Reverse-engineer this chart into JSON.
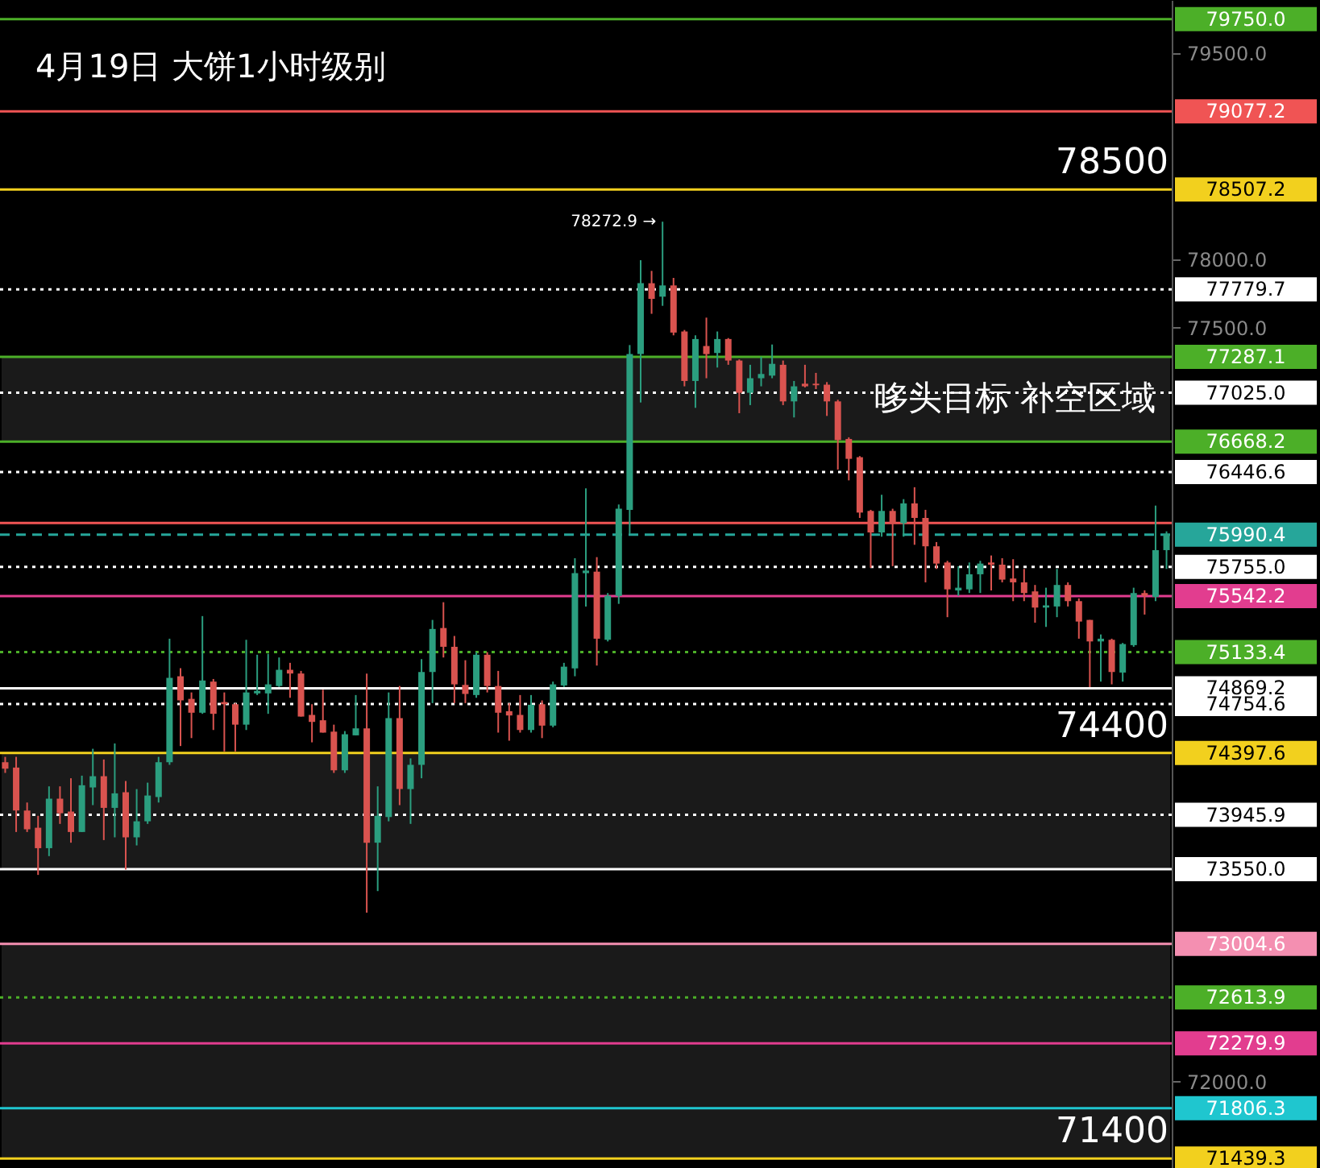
{
  "chart_data": {
    "type": "candlestick",
    "title": "4月19日 大饼1小时级别",
    "categories": [
      null,
      null,
      null,
      null,
      null,
      null,
      null,
      null,
      null,
      null,
      null,
      null,
      null,
      null,
      null,
      null,
      null,
      null,
      null,
      null,
      null,
      null,
      null,
      null,
      null,
      null,
      null,
      null,
      null,
      null,
      null,
      null,
      null,
      null,
      null,
      null,
      null,
      null,
      null,
      null,
      null,
      null,
      null,
      null,
      null,
      null,
      null,
      null,
      null,
      null,
      null,
      null,
      null,
      null,
      null,
      null,
      null,
      null,
      null,
      null,
      null,
      null,
      null,
      null,
      null,
      null,
      null,
      null,
      null,
      null,
      null,
      null,
      null,
      null,
      null,
      null,
      null,
      null,
      null,
      null,
      null,
      null,
      null,
      null,
      null,
      null,
      null,
      null,
      null,
      null,
      null,
      null,
      null,
      null,
      null,
      null,
      null,
      null,
      null,
      null,
      null,
      null,
      null,
      null,
      null,
      null,
      null
    ],
    "ohlc": [
      [
        74330,
        74369,
        74252,
        74283
      ],
      [
        74291,
        74369,
        73821,
        73978
      ],
      [
        73978,
        74036,
        73821,
        73841
      ],
      [
        73852,
        73939,
        73508,
        73703
      ],
      [
        73703,
        74154,
        73645,
        74064
      ],
      [
        74064,
        74154,
        73880,
        73958
      ],
      [
        73970,
        74213,
        73743,
        73821
      ],
      [
        73821,
        74232,
        73821,
        74162
      ],
      [
        74146,
        74428,
        74017,
        74228
      ],
      [
        74228,
        74350,
        73762,
        73997
      ],
      [
        73997,
        74467,
        73782,
        74103
      ],
      [
        74111,
        74193,
        73547,
        73782
      ],
      [
        73782,
        74134,
        73723,
        73899
      ],
      [
        73899,
        74181,
        73880,
        74087
      ],
      [
        74076,
        74369,
        74036,
        74330
      ],
      [
        74330,
        75231,
        74311,
        74945
      ],
      [
        74957,
        75016,
        74448,
        74781
      ],
      [
        74792,
        74839,
        74506,
        74691
      ],
      [
        74691,
        75396,
        74683,
        74926
      ],
      [
        74918,
        74937,
        74565,
        74683
      ],
      [
        74769,
        74839,
        74409,
        74753
      ],
      [
        74753,
        74761,
        74409,
        74604
      ],
      [
        74604,
        75223,
        74565,
        74839
      ],
      [
        74832,
        75114,
        74820,
        74851
      ],
      [
        74832,
        75121,
        74683,
        74898
      ],
      [
        74886,
        75094,
        74879,
        75004
      ],
      [
        75004,
        75055,
        74800,
        74977
      ],
      [
        74977,
        74996,
        74663,
        74663
      ],
      [
        74675,
        74753,
        74475,
        74624
      ],
      [
        74636,
        74859,
        74546,
        74546
      ],
      [
        74553,
        74604,
        74252,
        74271
      ],
      [
        74271,
        74557,
        74252,
        74534
      ],
      [
        74526,
        74820,
        74526,
        74577
      ],
      [
        74577,
        74977,
        73233,
        73743
      ],
      [
        73743,
        74154,
        73390,
        73939
      ],
      [
        73931,
        74839,
        73899,
        74651
      ],
      [
        74651,
        74886,
        74017,
        74134
      ],
      [
        74134,
        74358,
        73880,
        74311
      ],
      [
        74311,
        75082,
        74213,
        74988
      ],
      [
        74988,
        75368,
        74761,
        75302
      ],
      [
        75309,
        75497,
        75094,
        75172
      ],
      [
        75172,
        75251,
        74761,
        74898
      ],
      [
        74894,
        75074,
        74761,
        74828
      ],
      [
        74820,
        75133,
        74800,
        75114
      ],
      [
        75114,
        75133,
        74839,
        74886
      ],
      [
        74886,
        74996,
        74546,
        74691
      ],
      [
        74702,
        74761,
        74487,
        74671
      ],
      [
        74675,
        74820,
        74546,
        74565
      ],
      [
        74565,
        74820,
        74546,
        74749
      ],
      [
        74753,
        74781,
        74506,
        74597
      ],
      [
        74597,
        74918,
        74585,
        74898
      ],
      [
        74890,
        75055,
        74879,
        75027
      ],
      [
        75015,
        75818,
        74957,
        75709
      ],
      [
        75709,
        76328,
        75466,
        75728
      ],
      [
        75720,
        75826,
        75035,
        75231
      ],
      [
        75223,
        75564,
        75211,
        75544
      ],
      [
        75544,
        76210,
        75485,
        76179
      ],
      [
        76171,
        77373,
        75995,
        77307
      ],
      [
        77307,
        77992,
        76954,
        77824
      ],
      [
        77824,
        77914,
        77601,
        77710
      ],
      [
        77726,
        78272.9,
        77659,
        77808
      ],
      [
        77808,
        77863,
        77444,
        77464
      ],
      [
        77472,
        77483,
        77072,
        77111
      ],
      [
        77111,
        77444,
        76915,
        77417
      ],
      [
        77366,
        77573,
        77131,
        77307
      ],
      [
        77315,
        77472,
        77209,
        77417
      ],
      [
        77417,
        77424,
        77229,
        77260
      ],
      [
        77260,
        77268,
        76876,
        77025
      ],
      [
        77025,
        77229,
        76935,
        77131
      ],
      [
        77131,
        77287,
        77072,
        77162
      ],
      [
        77150,
        77377,
        77131,
        77236
      ],
      [
        77229,
        77260,
        76935,
        76962
      ],
      [
        76962,
        77111,
        76845,
        77072
      ],
      [
        77091,
        77229,
        77064,
        77072
      ],
      [
        77091,
        77170,
        77052,
        77080
      ],
      [
        77084,
        77103,
        76856,
        76962
      ],
      [
        76962,
        76974,
        76465,
        76680
      ],
      [
        76688,
        76700,
        76386,
        76543
      ],
      [
        76555,
        76563,
        76112,
        76151
      ],
      [
        76163,
        76171,
        75748,
        76006
      ],
      [
        76006,
        76281,
        75975,
        76163
      ],
      [
        76163,
        76179,
        75760,
        76073
      ],
      [
        76073,
        76249,
        75975,
        76218
      ],
      [
        76218,
        76336,
        75916,
        76112
      ],
      [
        76112,
        76171,
        75642,
        75905
      ],
      [
        75905,
        75936,
        75740,
        75779
      ],
      [
        75787,
        75799,
        75388,
        75591
      ],
      [
        75583,
        75760,
        75544,
        75603
      ],
      [
        75591,
        75787,
        75564,
        75701
      ],
      [
        75701,
        75799,
        75564,
        75779
      ],
      [
        75787,
        75838,
        75583,
        75771
      ],
      [
        75771,
        75818,
        75642,
        75662
      ],
      [
        75670,
        75811,
        75505,
        75642
      ],
      [
        75642,
        75740,
        75505,
        75564
      ],
      [
        75576,
        75623,
        75348,
        75458
      ],
      [
        75458,
        75603,
        75317,
        75474
      ],
      [
        75466,
        75740,
        75388,
        75623
      ],
      [
        75623,
        75642,
        75466,
        75505
      ],
      [
        75505,
        75525,
        75231,
        75356
      ],
      [
        75368,
        75368,
        74878,
        75211
      ],
      [
        75211,
        75262,
        74918,
        75231
      ],
      [
        75223,
        75231,
        74898,
        74988
      ],
      [
        74984,
        75200,
        74918,
        75192
      ],
      [
        75184,
        75603,
        75172,
        75564
      ],
      [
        75564,
        75584,
        75407,
        75544
      ],
      [
        75536,
        76202,
        75505,
        75877
      ],
      [
        75877,
        76014,
        75740,
        75995
      ]
    ],
    "ylim": [
      71370,
      79890
    ],
    "yticks": [
      {
        "value": 79500,
        "label": "79500.0"
      },
      {
        "value": 78000,
        "label": "78000.0"
      },
      {
        "value": 77500,
        "label": "77500.0"
      },
      {
        "value": 72000,
        "label": "72000.0"
      }
    ],
    "tick_labels": "y",
    "ref_lines": [
      {
        "axis": "y",
        "value": 79750,
        "label": "79750.0",
        "color": "#4caf28"
      },
      {
        "axis": "y",
        "value": 79077.2,
        "label": "79077.2",
        "color": "#f05454"
      },
      {
        "axis": "y",
        "value": 78507.2,
        "label": "78507.2",
        "color": "#f2d01e"
      },
      {
        "axis": "y",
        "value": 77779.7,
        "label": "77779.7",
        "color": "#ffffff",
        "line_style": "dotted"
      },
      {
        "axis": "y",
        "value": 77287.1,
        "label": "77287.1",
        "color": "#4caf28"
      },
      {
        "axis": "y",
        "value": 77025.0,
        "label": "77025.0",
        "color": "#ffffff",
        "line_style": "dotted"
      },
      {
        "axis": "y",
        "value": 76668.2,
        "label": "76668.2",
        "color": "#4caf28"
      },
      {
        "axis": "y",
        "value": 76446.6,
        "label": "76446.6",
        "color": "#ffffff",
        "line_style": "dotted"
      },
      {
        "axis": "y",
        "value": 76075,
        "label": null,
        "color": "#f05454"
      },
      {
        "axis": "y",
        "value": 75990.4,
        "label": "75990.4",
        "color": "#26a69a",
        "line_style": "dashed"
      },
      {
        "axis": "y",
        "value": 75755.0,
        "label": "75755.0",
        "color": "#ffffff",
        "line_style": "dotted"
      },
      {
        "axis": "y",
        "value": 75542.2,
        "label": "75542.2",
        "color": "#e23d8f"
      },
      {
        "axis": "y",
        "value": 75133.4,
        "label": "75133.4",
        "color": "#4caf28",
        "line_style": "dotted"
      },
      {
        "axis": "y",
        "value": 74869.2,
        "label": "74869.2",
        "color": "#ffffff"
      },
      {
        "axis": "y",
        "value": 74754.6,
        "label": "74754.6",
        "color": "#ffffff",
        "line_style": "dotted"
      },
      {
        "axis": "y",
        "value": 74397.6,
        "label": "74397.6",
        "color": "#f2d01e"
      },
      {
        "axis": "y",
        "value": 73945.9,
        "label": "73945.9",
        "color": "#ffffff",
        "line_style": "dotted"
      },
      {
        "axis": "y",
        "value": 73550.0,
        "label": "73550.0",
        "color": "#ffffff"
      },
      {
        "axis": "y",
        "value": 73004.6,
        "label": "73004.6",
        "color": "#f48fb1"
      },
      {
        "axis": "y",
        "value": 72613.9,
        "label": "72613.9",
        "color": "#4caf28",
        "line_style": "dotted"
      },
      {
        "axis": "y",
        "value": 72279.9,
        "label": "72279.9",
        "color": "#e23d8f"
      },
      {
        "axis": "y",
        "value": 71806.3,
        "label": "71806.3",
        "color": "#1fc6cf"
      },
      {
        "axis": "y",
        "value": 71439.3,
        "label": "71439.3",
        "color": "#f2d01e"
      }
    ],
    "bands": [
      {
        "axis": "y",
        "from": 76668.2,
        "to": 77287.1,
        "label": "哆头目标 补空区域",
        "color": "#ffffff"
      },
      {
        "axis": "y",
        "from": 73550.0,
        "to": 74397.6,
        "label": null,
        "color": "#ffffff"
      },
      {
        "axis": "y",
        "from": 72279.9,
        "to": 73004.6,
        "label": null,
        "color": "#ffffff"
      },
      {
        "axis": "y",
        "from": 71439.3,
        "to": 72279.9,
        "label": null,
        "color": "#ffffff"
      }
    ],
    "annotations": [
      {
        "text": "78500",
        "y": 78507.2
      },
      {
        "text": "74400",
        "y": 74397.6
      },
      {
        "text": "71400",
        "y": 71439.3
      },
      "78272.9 →"
    ]
  }
}
